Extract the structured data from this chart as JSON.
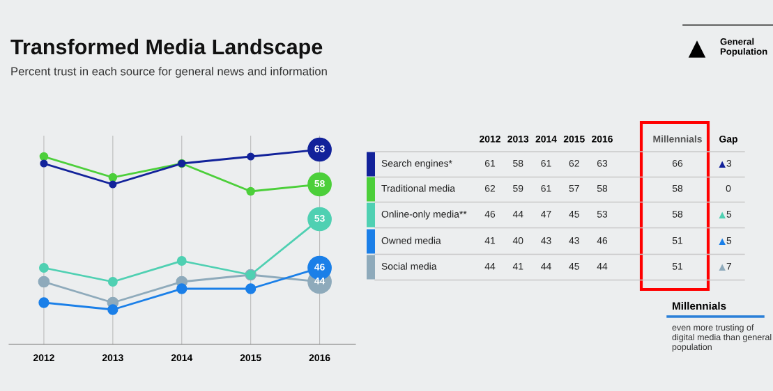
{
  "chart_data": {
    "type": "line",
    "title": "Transformed Media Landscape",
    "subtitle": "Percent trust in each source for general news and information",
    "categories": [
      "2012",
      "2013",
      "2014",
      "2015",
      "2016"
    ],
    "series": [
      {
        "name": "Search engines*",
        "color": "#12229a",
        "values": [
          61,
          58,
          61,
          62,
          63
        ],
        "value_labels": [
          null,
          null,
          null,
          null,
          "63"
        ]
      },
      {
        "name": "Traditional media",
        "color": "#4ccf3a",
        "values": [
          62,
          59,
          61,
          57,
          58
        ],
        "value_labels": [
          null,
          null,
          null,
          null,
          "58"
        ]
      },
      {
        "name": "Online-only media**",
        "color": "#4fd0b2",
        "values": [
          46,
          44,
          47,
          45,
          53
        ],
        "value_labels": [
          null,
          null,
          null,
          null,
          "53"
        ]
      },
      {
        "name": "Owned media",
        "color": "#1a7fe8",
        "values": [
          41,
          40,
          43,
          43,
          46
        ],
        "value_labels": [
          null,
          null,
          null,
          null,
          "46"
        ]
      },
      {
        "name": "Social media",
        "color": "#8eaabb",
        "values": [
          44,
          41,
          44,
          45,
          44
        ],
        "value_labels": [
          null,
          null,
          null,
          null,
          "44"
        ]
      }
    ],
    "ylim": [
      35,
      65
    ],
    "tick_labels": "x",
    "grid": "x",
    "marker": "circle",
    "line_style": "solid",
    "annotations": [
      "General Population",
      "Millennials",
      "Gap",
      "61",
      "58",
      "61",
      "62",
      "63",
      "62",
      "59",
      "61",
      "57",
      "58",
      "46",
      "44",
      "47",
      "45",
      "53",
      "41",
      "40",
      "43",
      "43",
      "46",
      "44",
      "41",
      "44",
      "45",
      "44",
      "66",
      "58",
      "58",
      "51",
      "51",
      "▲3",
      "0",
      "▲5",
      "▲5",
      "▲7",
      "Millennials",
      "even more trusting of digital media than general population"
    ]
  }
}
